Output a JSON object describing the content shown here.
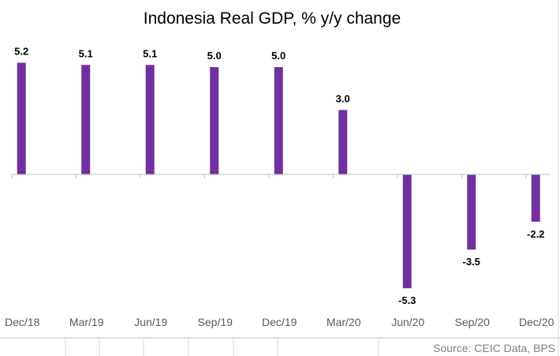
{
  "chart_data": {
    "type": "bar",
    "title": "Indonesia Real GDP, % y/y change",
    "categories": [
      "Dec/18",
      "Mar/19",
      "Jun/19",
      "Sep/19",
      "Dec/19",
      "Mar/20",
      "Jun/20",
      "Sep/20",
      "Dec/20"
    ],
    "values": [
      5.2,
      5.1,
      5.1,
      5.0,
      5.0,
      3.0,
      -5.3,
      -3.5,
      -2.2
    ],
    "data_labels": [
      "5.2",
      "5.1",
      "5.1",
      "5.0",
      "5.0",
      "3.0",
      "-5.3",
      "-3.5",
      "-2.2"
    ],
    "xlabel": "",
    "ylabel": "",
    "ylim": [
      -5.3,
      5.2
    ],
    "grid": false,
    "bar_color": "#7030a0",
    "source": "Source: CEIC Data, BPS"
  }
}
